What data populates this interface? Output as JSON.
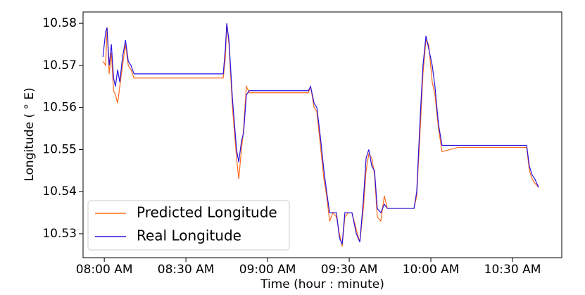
{
  "chart_data": {
    "type": "line",
    "x_label": "Time (hour : minute)",
    "y_label": "Longitude ( ° E)",
    "x": [
      -0.5,
      0.5,
      1,
      1.8,
      2.6,
      3.4,
      4.1,
      4.9,
      5.7,
      6.7,
      7.8,
      8.8,
      9.8,
      10.9,
      15,
      20,
      25,
      30,
      35,
      40,
      43.7,
      44.5,
      45,
      45.8,
      47.1,
      48.6,
      49.4,
      50.4,
      51.2,
      52.2,
      53.3,
      58,
      63,
      68,
      72,
      75,
      75.8,
      77.1,
      78.1,
      79.4,
      80.7,
      81.7,
      82.8,
      84,
      85.3,
      86.4,
      87.4,
      88.4,
      89.7,
      91,
      92.6,
      93.9,
      95.2,
      96.2,
      97.2,
      98.3,
      99.3,
      100.3,
      101.6,
      102.9,
      104,
      109,
      113.8,
      114.8,
      116.1,
      117.1,
      118.2,
      119.2,
      120.5,
      121.5,
      122.8,
      124.1,
      130,
      136,
      142,
      148,
      155.2,
      156.2,
      157.2,
      158.2,
      159.6
    ],
    "series": [
      {
        "name": "Predicted Longitude",
        "color": "#ff6a1a",
        "values": [
          10.571,
          10.57,
          10.579,
          10.568,
          10.573,
          10.564,
          10.563,
          10.561,
          10.565,
          10.57,
          10.575,
          10.57,
          10.569,
          10.567,
          10.567,
          10.567,
          10.567,
          10.567,
          10.567,
          10.567,
          10.567,
          10.572,
          10.58,
          10.575,
          10.56,
          10.548,
          10.543,
          10.55,
          10.555,
          10.565,
          10.5635,
          10.5635,
          10.5635,
          10.5635,
          10.5635,
          10.5635,
          10.565,
          10.56,
          10.559,
          10.551,
          10.543,
          10.539,
          10.533,
          10.535,
          10.534,
          10.53,
          10.527,
          10.534,
          10.535,
          10.535,
          10.531,
          10.528,
          10.536,
          10.545,
          10.549,
          10.548,
          10.544,
          10.534,
          10.533,
          10.539,
          10.536,
          10.536,
          10.536,
          10.539,
          10.555,
          10.568,
          10.576,
          10.575,
          10.566,
          10.563,
          10.555,
          10.5495,
          10.5505,
          10.5505,
          10.5505,
          10.5505,
          10.5505,
          10.545,
          10.543,
          10.542,
          10.541
        ]
      },
      {
        "name": "Real Longitude",
        "color": "#2a10e0",
        "values": [
          10.572,
          10.578,
          10.579,
          10.57,
          10.575,
          10.567,
          10.565,
          10.569,
          10.566,
          10.572,
          10.576,
          10.571,
          10.57,
          10.568,
          10.568,
          10.568,
          10.568,
          10.568,
          10.568,
          10.568,
          10.568,
          10.574,
          10.58,
          10.576,
          10.562,
          10.55,
          10.547,
          10.552,
          10.554,
          10.563,
          10.564,
          10.564,
          10.564,
          10.564,
          10.564,
          10.564,
          10.565,
          10.561,
          10.56,
          10.553,
          10.545,
          10.54,
          10.535,
          10.535,
          10.535,
          10.529,
          10.5275,
          10.535,
          10.535,
          10.535,
          10.53,
          10.528,
          10.538,
          10.548,
          10.55,
          10.546,
          10.545,
          10.536,
          10.535,
          10.537,
          10.536,
          10.536,
          10.536,
          10.54,
          10.558,
          10.57,
          10.577,
          10.574,
          10.57,
          10.565,
          10.556,
          10.551,
          10.551,
          10.551,
          10.551,
          10.551,
          10.551,
          10.546,
          10.544,
          10.543,
          10.541
        ]
      }
    ],
    "xlim": [
      -7.8,
      168.1
    ],
    "xticks": [
      {
        "value": 0,
        "label": "08:00 AM"
      },
      {
        "value": 30,
        "label": "08:30 AM"
      },
      {
        "value": 60,
        "label": "09:00 AM"
      },
      {
        "value": 90,
        "label": "09:30 AM"
      },
      {
        "value": 120,
        "label": "10:00 AM"
      },
      {
        "value": 150,
        "label": "10:30 AM"
      }
    ],
    "ylim": [
      10.5243,
      10.5827
    ],
    "yticks": [
      10.53,
      10.54,
      10.55,
      10.56,
      10.57,
      10.58
    ],
    "legend": "lower left"
  }
}
